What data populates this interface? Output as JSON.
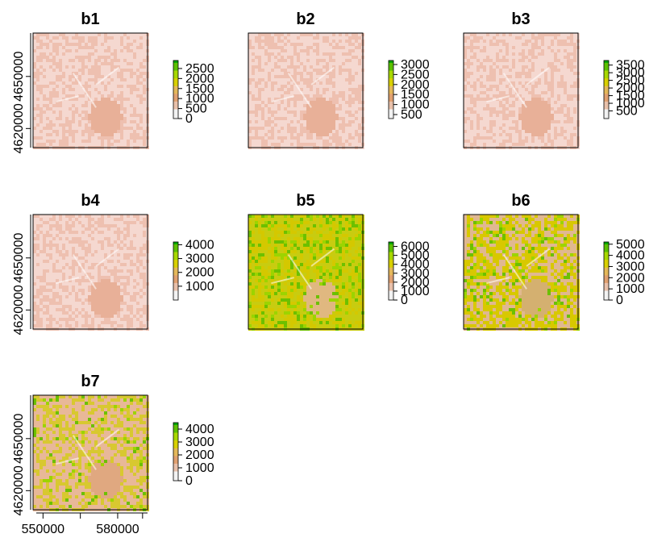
{
  "chart_data": {
    "type": "heatmap",
    "description_free": true,
    "colormap": [
      "#f2f2f2",
      "#e8c0aa",
      "#e0a070",
      "#e4b85a",
      "#d8d000",
      "#a8d800",
      "#5cc000",
      "#00a600"
    ],
    "x_ticks": [
      550000,
      580000
    ],
    "x_tick_labels": [
      "550000",
      "580000"
    ],
    "y_ticks": [
      4620000,
      4650000
    ],
    "y_tick_labels": [
      "4620000",
      "4650000"
    ],
    "x_range": [
      546000,
      592000
    ],
    "y_range": [
      4609000,
      4675000
    ],
    "panels": [
      {
        "title": "b1",
        "zlim": [
          0,
          2900
        ],
        "legend_ticks": [
          0,
          500,
          1000,
          1500,
          2000,
          2500
        ],
        "legend_labels": [
          "0",
          "500",
          "1000",
          "1500",
          "2000",
          "2500"
        ],
        "palette": [
          "#f5d8d0",
          "#eec0b0",
          "#e8b098"
        ],
        "green_density": 0.0
      },
      {
        "title": "b2",
        "zlim": [
          300,
          3200
        ],
        "legend_ticks": [
          500,
          1000,
          1500,
          2000,
          2500,
          3000
        ],
        "legend_labels": [
          "500",
          "1000",
          "1500",
          "2000",
          "2500",
          "3000"
        ],
        "palette": [
          "#f5d8d0",
          "#eec0b0",
          "#e8b098"
        ],
        "green_density": 0.0
      },
      {
        "title": "b3",
        "zlim": [
          0,
          3800
        ],
        "legend_ticks": [
          500,
          1000,
          1500,
          2000,
          2500,
          3000,
          3500
        ],
        "legend_labels": [
          "500",
          "1000",
          "1500",
          "2000",
          "2500",
          "3000",
          "3500"
        ],
        "palette": [
          "#f5d8d0",
          "#eec0b0",
          "#e8b098"
        ],
        "green_density": 0.0
      },
      {
        "title": "b4",
        "zlim": [
          0,
          4200
        ],
        "legend_ticks": [
          1000,
          2000,
          3000,
          4000
        ],
        "legend_labels": [
          "1000",
          "2000",
          "3000",
          "4000"
        ],
        "palette": [
          "#f5d8d0",
          "#eec0b0",
          "#e8b098"
        ],
        "green_density": 0.0
      },
      {
        "title": "b5",
        "zlim": [
          0,
          6500
        ],
        "legend_ticks": [
          0,
          1000,
          2000,
          3000,
          4000,
          5000,
          6000
        ],
        "legend_labels": [
          "0",
          "1000",
          "2000",
          "3000",
          "4000",
          "5000",
          "6000"
        ],
        "palette": [
          "#c8cc10",
          "#d4c800",
          "#e0b880"
        ],
        "green_density": 0.25
      },
      {
        "title": "b6",
        "zlim": [
          0,
          5200
        ],
        "legend_ticks": [
          0,
          1000,
          2000,
          3000,
          4000,
          5000
        ],
        "legend_labels": [
          "0",
          "1000",
          "2000",
          "3000",
          "4000",
          "5000"
        ],
        "palette": [
          "#d8c800",
          "#e0b890",
          "#d4b070"
        ],
        "green_density": 0.12
      },
      {
        "title": "b7",
        "zlim": [
          0,
          4500
        ],
        "legend_ticks": [
          0,
          1000,
          2000,
          3000,
          4000
        ],
        "legend_labels": [
          "0",
          "1000",
          "2000",
          "3000",
          "4000"
        ],
        "palette": [
          "#e8b898",
          "#d8c830",
          "#e0a880"
        ],
        "green_density": 0.08
      }
    ]
  }
}
